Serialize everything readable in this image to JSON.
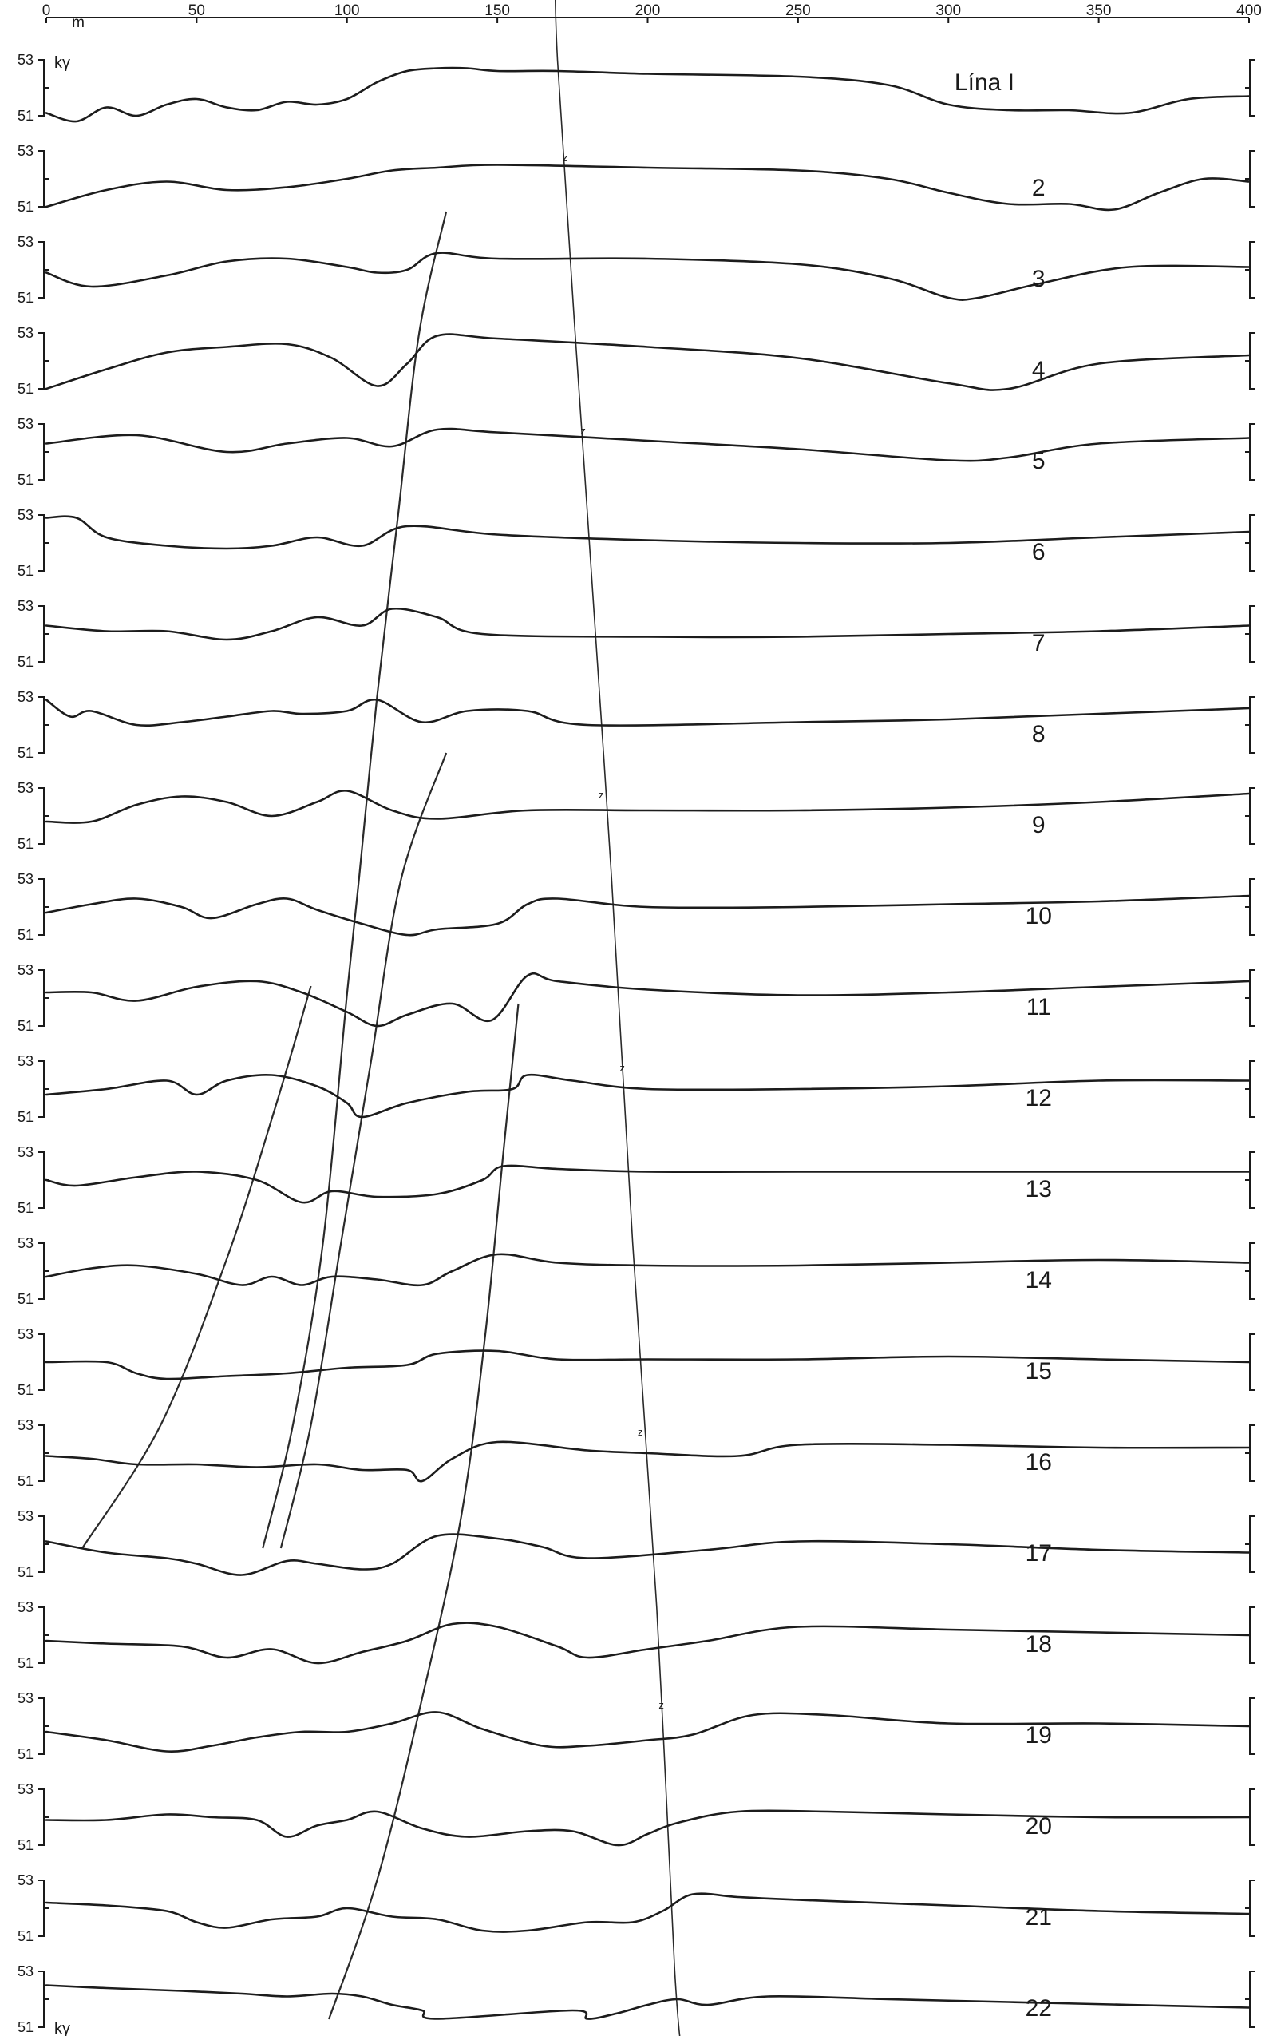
{
  "chart_data": {
    "type": "line",
    "title": "",
    "xlabel": "m",
    "x_unit": "m",
    "y_unit": "kγ",
    "xlim": [
      0,
      400
    ],
    "x_ticks": [
      0,
      50,
      100,
      150,
      200,
      250,
      300,
      350,
      400
    ],
    "x_tick_labels": [
      "0",
      "50",
      "100",
      "150",
      "200",
      "250",
      "300",
      "350",
      "400"
    ],
    "y_tick_labels": [
      "53",
      "51"
    ],
    "ylim": [
      51,
      53
    ],
    "line_label_prefix": "Lína",
    "bottom_unit_label": "kγ",
    "series": [
      {
        "name": "1",
        "label": "Lína I",
        "x": [
          0,
          10,
          20,
          30,
          40,
          50,
          60,
          70,
          80,
          90,
          100,
          110,
          120,
          130,
          140,
          150,
          170,
          200,
          250,
          280,
          300,
          320,
          340,
          360,
          380,
          400
        ],
        "values": [
          51.1,
          50.8,
          51.3,
          51.0,
          51.4,
          51.6,
          51.3,
          51.2,
          51.5,
          51.4,
          51.6,
          52.2,
          52.6,
          52.7,
          52.7,
          52.6,
          52.6,
          52.5,
          52.4,
          52.1,
          51.4,
          51.2,
          51.2,
          51.1,
          51.6,
          51.7
        ]
      },
      {
        "name": "2",
        "x": [
          0,
          20,
          40,
          60,
          80,
          100,
          115,
          130,
          150,
          200,
          250,
          280,
          300,
          320,
          340,
          355,
          370,
          385,
          400
        ],
        "values": [
          51.0,
          51.6,
          51.9,
          51.6,
          51.7,
          52.0,
          52.3,
          52.4,
          52.5,
          52.4,
          52.3,
          52.0,
          51.5,
          51.1,
          51.1,
          50.9,
          51.5,
          52.0,
          51.9
        ]
      },
      {
        "name": "3",
        "x": [
          0,
          15,
          40,
          60,
          80,
          100,
          110,
          120,
          130,
          150,
          200,
          250,
          280,
          300,
          310,
          330,
          360,
          400
        ],
        "values": [
          51.9,
          51.4,
          51.8,
          52.3,
          52.4,
          52.1,
          51.9,
          52.0,
          52.6,
          52.4,
          52.4,
          52.2,
          51.7,
          51.0,
          51.0,
          51.5,
          52.1,
          52.1
        ]
      },
      {
        "name": "4",
        "x": [
          0,
          20,
          40,
          60,
          80,
          95,
          110,
          120,
          130,
          150,
          200,
          250,
          300,
          320,
          350,
          400
        ],
        "values": [
          51.0,
          51.7,
          52.3,
          52.5,
          52.6,
          52.1,
          51.1,
          51.9,
          52.9,
          52.8,
          52.5,
          52.1,
          51.2,
          51.0,
          51.9,
          52.2
        ]
      },
      {
        "name": "5",
        "x": [
          0,
          30,
          60,
          80,
          100,
          115,
          130,
          150,
          200,
          250,
          300,
          320,
          350,
          400
        ],
        "values": [
          52.3,
          52.6,
          52.0,
          52.3,
          52.5,
          52.2,
          52.8,
          52.7,
          52.4,
          52.1,
          51.7,
          51.8,
          52.3,
          52.5
        ]
      },
      {
        "name": "6",
        "x": [
          0,
          10,
          20,
          40,
          60,
          75,
          90,
          105,
          120,
          150,
          200,
          250,
          300,
          350,
          400
        ],
        "values": [
          52.9,
          52.9,
          52.2,
          51.9,
          51.8,
          51.9,
          52.2,
          51.9,
          52.6,
          52.3,
          52.1,
          52.0,
          52.0,
          52.2,
          52.4
        ]
      },
      {
        "name": "7",
        "x": [
          0,
          20,
          40,
          60,
          75,
          90,
          105,
          115,
          130,
          145,
          200,
          250,
          300,
          350,
          400
        ],
        "values": [
          52.3,
          52.1,
          52.1,
          51.8,
          52.1,
          52.6,
          52.3,
          52.9,
          52.6,
          52.0,
          51.9,
          51.9,
          52.0,
          52.1,
          52.3
        ]
      },
      {
        "name": "8",
        "x": [
          0,
          8,
          15,
          30,
          45,
          60,
          75,
          85,
          100,
          110,
          125,
          140,
          160,
          180,
          250,
          300,
          350,
          400
        ],
        "values": [
          52.9,
          52.3,
          52.5,
          52.0,
          52.1,
          52.3,
          52.5,
          52.4,
          52.5,
          52.9,
          52.1,
          52.5,
          52.5,
          52.0,
          52.1,
          52.2,
          52.4,
          52.6
        ]
      },
      {
        "name": "9",
        "x": [
          0,
          15,
          30,
          45,
          60,
          75,
          90,
          100,
          115,
          130,
          160,
          200,
          250,
          300,
          350,
          400
        ],
        "values": [
          51.8,
          51.8,
          52.4,
          52.7,
          52.5,
          52.0,
          52.5,
          52.9,
          52.2,
          51.9,
          52.2,
          52.2,
          52.2,
          52.3,
          52.5,
          52.8
        ]
      },
      {
        "name": "10",
        "x": [
          0,
          15,
          30,
          45,
          55,
          70,
          80,
          90,
          105,
          120,
          130,
          150,
          160,
          170,
          200,
          250,
          300,
          350,
          400
        ],
        "values": [
          51.8,
          52.1,
          52.3,
          52.0,
          51.6,
          52.1,
          52.3,
          51.9,
          51.4,
          51.0,
          51.2,
          51.4,
          52.1,
          52.3,
          52.0,
          52.0,
          52.1,
          52.2,
          52.4
        ]
      },
      {
        "name": "11",
        "x": [
          0,
          15,
          30,
          50,
          70,
          85,
          100,
          110,
          120,
          135,
          148,
          160,
          170,
          200,
          250,
          300,
          350,
          400
        ],
        "values": [
          52.2,
          52.2,
          51.9,
          52.4,
          52.6,
          52.2,
          51.5,
          51.0,
          51.4,
          51.8,
          51.2,
          52.8,
          52.6,
          52.3,
          52.1,
          52.2,
          52.4,
          52.6
        ]
      },
      {
        "name": "12",
        "x": [
          0,
          20,
          40,
          50,
          60,
          75,
          90,
          100,
          105,
          120,
          140,
          155,
          160,
          175,
          200,
          250,
          300,
          350,
          400
        ],
        "values": [
          51.8,
          52.0,
          52.3,
          51.8,
          52.3,
          52.5,
          52.1,
          51.5,
          51.0,
          51.5,
          51.9,
          52.0,
          52.5,
          52.3,
          52.0,
          52.0,
          52.1,
          52.3,
          52.3
        ]
      },
      {
        "name": "13",
        "x": [
          0,
          10,
          30,
          50,
          70,
          85,
          95,
          110,
          130,
          145,
          152,
          170,
          200,
          250,
          300,
          350,
          400
        ],
        "values": [
          52.0,
          51.8,
          52.1,
          52.3,
          52.0,
          51.2,
          51.6,
          51.4,
          51.5,
          52.0,
          52.5,
          52.4,
          52.3,
          52.3,
          52.3,
          52.3,
          52.3
        ]
      },
      {
        "name": "14",
        "x": [
          0,
          15,
          30,
          50,
          65,
          75,
          85,
          95,
          110,
          125,
          135,
          150,
          170,
          200,
          250,
          300,
          350,
          400
        ],
        "values": [
          51.8,
          52.1,
          52.2,
          51.9,
          51.5,
          51.8,
          51.5,
          51.8,
          51.7,
          51.5,
          52.0,
          52.6,
          52.3,
          52.2,
          52.2,
          52.3,
          52.4,
          52.3
        ]
      },
      {
        "name": "15",
        "x": [
          0,
          20,
          30,
          40,
          60,
          80,
          100,
          120,
          130,
          150,
          170,
          200,
          250,
          300,
          350,
          400
        ],
        "values": [
          52.0,
          52.0,
          51.6,
          51.4,
          51.5,
          51.6,
          51.8,
          51.9,
          52.3,
          52.4,
          52.1,
          52.1,
          52.1,
          52.2,
          52.1,
          52.0
        ]
      },
      {
        "name": "16",
        "x": [
          0,
          15,
          30,
          50,
          70,
          90,
          105,
          120,
          125,
          135,
          150,
          180,
          200,
          230,
          250,
          300,
          350,
          400
        ],
        "values": [
          51.9,
          51.8,
          51.6,
          51.6,
          51.5,
          51.6,
          51.4,
          51.4,
          51.0,
          51.8,
          52.4,
          52.1,
          52.0,
          51.9,
          52.3,
          52.3,
          52.2,
          52.2
        ]
      },
      {
        "name": "17",
        "x": [
          0,
          20,
          40,
          50,
          65,
          80,
          90,
          105,
          115,
          130,
          150,
          165,
          180,
          220,
          250,
          300,
          350,
          400
        ],
        "values": [
          52.1,
          51.7,
          51.5,
          51.3,
          50.9,
          51.4,
          51.3,
          51.1,
          51.3,
          52.3,
          52.2,
          51.9,
          51.5,
          51.8,
          52.1,
          52.0,
          51.8,
          51.7
        ]
      },
      {
        "name": "18",
        "x": [
          0,
          20,
          45,
          60,
          75,
          90,
          105,
          120,
          135,
          150,
          170,
          180,
          200,
          220,
          250,
          300,
          350,
          400
        ],
        "values": [
          51.8,
          51.7,
          51.6,
          51.2,
          51.5,
          51.0,
          51.4,
          51.8,
          52.4,
          52.3,
          51.6,
          51.2,
          51.5,
          51.8,
          52.3,
          52.2,
          52.1,
          52.0
        ]
      },
      {
        "name": "19",
        "x": [
          0,
          20,
          40,
          55,
          70,
          85,
          100,
          115,
          130,
          145,
          165,
          180,
          200,
          215,
          235,
          260,
          300,
          350,
          400
        ],
        "values": [
          51.8,
          51.5,
          51.1,
          51.3,
          51.6,
          51.8,
          51.8,
          52.1,
          52.5,
          51.9,
          51.3,
          51.3,
          51.5,
          51.7,
          52.4,
          52.4,
          52.1,
          52.1,
          52.0
        ]
      },
      {
        "name": "20",
        "x": [
          0,
          20,
          40,
          55,
          70,
          80,
          90,
          100,
          110,
          125,
          140,
          160,
          175,
          190,
          200,
          210,
          230,
          260,
          300,
          350,
          400
        ],
        "values": [
          51.9,
          51.9,
          52.1,
          52.0,
          51.9,
          51.3,
          51.7,
          51.9,
          52.2,
          51.6,
          51.3,
          51.5,
          51.5,
          51.0,
          51.4,
          51.8,
          52.2,
          52.2,
          52.1,
          52.0,
          52.0
        ]
      },
      {
        "name": "21",
        "x": [
          0,
          20,
          40,
          50,
          60,
          75,
          90,
          100,
          115,
          130,
          145,
          160,
          180,
          195,
          205,
          215,
          230,
          250,
          300,
          350,
          400
        ],
        "values": [
          52.2,
          52.1,
          51.9,
          51.5,
          51.3,
          51.6,
          51.7,
          52.0,
          51.7,
          51.6,
          51.2,
          51.2,
          51.5,
          51.5,
          51.9,
          52.5,
          52.4,
          52.3,
          52.1,
          51.9,
          51.8
        ]
      },
      {
        "name": "22",
        "x": [
          0,
          20,
          45,
          65,
          80,
          95,
          105,
          115,
          125,
          130,
          175,
          180,
          190,
          200,
          210,
          220,
          240,
          280,
          320,
          360,
          400
        ],
        "values": [
          52.5,
          52.4,
          52.3,
          52.2,
          52.1,
          52.2,
          52.1,
          51.8,
          51.6,
          51.3,
          51.6,
          51.3,
          51.5,
          51.8,
          52.0,
          51.8,
          52.1,
          52.0,
          51.9,
          51.8,
          51.7
        ]
      }
    ]
  }
}
